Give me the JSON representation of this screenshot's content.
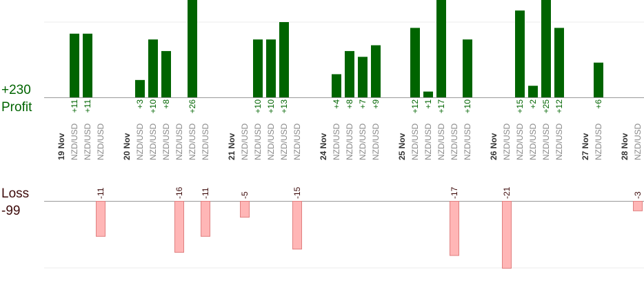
{
  "summary": {
    "profit_total": "+230",
    "profit_label": "Profit",
    "loss_label": "Loss",
    "loss_total": "-99"
  },
  "colors": {
    "profit_bar": "#006400",
    "loss_bar": "#ffb6b6",
    "loss_bar_border": "#e07f7f",
    "profit_text": "#006400",
    "loss_text": "#3d0a0a",
    "date_text": "#333333",
    "pair_text": "#888888",
    "gridline": "#eeeeee",
    "baseline": "#999999"
  },
  "chart_data": {
    "type": "bar",
    "profit_axis_max": 13,
    "loss_axis_max": 21,
    "slots": [
      {
        "kind": "date",
        "label": "19 Nov"
      },
      {
        "kind": "trade",
        "pair": "NZD/USD",
        "value": 11
      },
      {
        "kind": "trade",
        "pair": "NZD/USD",
        "value": 11
      },
      {
        "kind": "trade",
        "pair": "NZD/USD",
        "value": -11
      },
      {
        "kind": "gap"
      },
      {
        "kind": "date",
        "label": "20 Nov"
      },
      {
        "kind": "trade",
        "pair": "NZD/USD",
        "value": 3
      },
      {
        "kind": "trade",
        "pair": "NZD/USD",
        "value": 10
      },
      {
        "kind": "trade",
        "pair": "NZD/USD",
        "value": 8
      },
      {
        "kind": "trade",
        "pair": "NZD/USD",
        "value": -16
      },
      {
        "kind": "trade",
        "pair": "NZD/USD",
        "value": 26
      },
      {
        "kind": "trade",
        "pair": "NZD/USD",
        "value": -11
      },
      {
        "kind": "gap"
      },
      {
        "kind": "date",
        "label": "21 Nov"
      },
      {
        "kind": "trade",
        "pair": "NZD/USD",
        "value": -5
      },
      {
        "kind": "trade",
        "pair": "NZD/USD",
        "value": 10
      },
      {
        "kind": "trade",
        "pair": "NZD/USD",
        "value": 10
      },
      {
        "kind": "trade",
        "pair": "NZD/USD",
        "value": 13
      },
      {
        "kind": "trade",
        "pair": "NZD/USD",
        "value": -15
      },
      {
        "kind": "gap"
      },
      {
        "kind": "date",
        "label": "24 Nov"
      },
      {
        "kind": "trade",
        "pair": "NZD/USD",
        "value": 4
      },
      {
        "kind": "trade",
        "pair": "NZD/USD",
        "value": 8
      },
      {
        "kind": "trade",
        "pair": "NZD/USD",
        "value": 7
      },
      {
        "kind": "trade",
        "pair": "NZD/USD",
        "value": 9
      },
      {
        "kind": "gap"
      },
      {
        "kind": "date",
        "label": "25 Nov"
      },
      {
        "kind": "trade",
        "pair": "NZD/USD",
        "value": 12
      },
      {
        "kind": "trade",
        "pair": "NZD/USD",
        "value": 1
      },
      {
        "kind": "trade",
        "pair": "NZD/USD",
        "value": 17
      },
      {
        "kind": "trade",
        "pair": "NZD/USD",
        "value": -17
      },
      {
        "kind": "trade",
        "pair": "NZD/USD",
        "value": 10
      },
      {
        "kind": "gap"
      },
      {
        "kind": "date",
        "label": "26 Nov"
      },
      {
        "kind": "trade",
        "pair": "NZD/USD",
        "value": -21
      },
      {
        "kind": "trade",
        "pair": "NZD/USD",
        "value": 15
      },
      {
        "kind": "trade",
        "pair": "NZD/USD",
        "value": 2
      },
      {
        "kind": "trade",
        "pair": "NZD/USD",
        "value": 25
      },
      {
        "kind": "trade",
        "pair": "NZD/USD",
        "value": 12
      },
      {
        "kind": "gap"
      },
      {
        "kind": "date",
        "label": "27 Nov"
      },
      {
        "kind": "trade",
        "pair": "NZD/USD",
        "value": 6
      },
      {
        "kind": "gap"
      },
      {
        "kind": "date",
        "label": "28 Nov"
      },
      {
        "kind": "trade",
        "pair": "NZD/USD",
        "value": -3
      }
    ]
  }
}
